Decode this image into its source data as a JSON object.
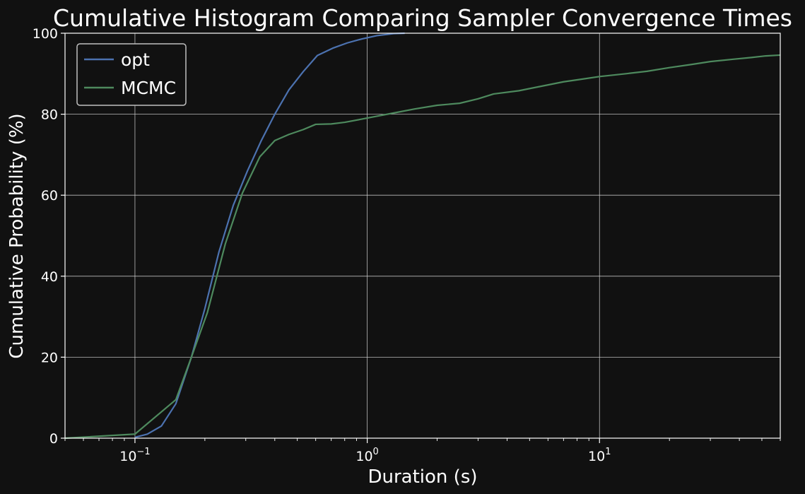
{
  "chart_data": {
    "type": "line",
    "title": "Cumulative Histogram Comparing Sampler Convergence Times",
    "xlabel": "Duration (s)",
    "ylabel": "Cumulative Probability (%)",
    "xscale": "log",
    "xlim": [
      0.05,
      60
    ],
    "ylim": [
      0,
      100
    ],
    "x_ticks": [
      {
        "value": 0.1,
        "base": "10",
        "exp": "−1"
      },
      {
        "value": 1,
        "base": "10",
        "exp": "0"
      },
      {
        "value": 10,
        "base": "10",
        "exp": "1"
      }
    ],
    "y_ticks": [
      {
        "value": 0,
        "label": "0"
      },
      {
        "value": 20,
        "label": "20"
      },
      {
        "value": 40,
        "label": "40"
      },
      {
        "value": 60,
        "label": "60"
      },
      {
        "value": 80,
        "label": "80"
      },
      {
        "value": 100,
        "label": "100"
      }
    ],
    "grid": true,
    "legend_position": "top-left",
    "series": [
      {
        "name": "opt",
        "color": "#4c72b0",
        "points": [
          [
            0.1,
            0.2
          ],
          [
            0.113,
            1.0
          ],
          [
            0.13,
            3.0
          ],
          [
            0.15,
            8.5
          ],
          [
            0.175,
            20.0
          ],
          [
            0.2,
            32.0
          ],
          [
            0.23,
            46.0
          ],
          [
            0.265,
            57.5
          ],
          [
            0.305,
            66.0
          ],
          [
            0.35,
            73.5
          ],
          [
            0.4,
            80.0
          ],
          [
            0.46,
            86.0
          ],
          [
            0.53,
            90.5
          ],
          [
            0.61,
            94.5
          ],
          [
            0.71,
            96.3
          ],
          [
            0.82,
            97.6
          ],
          [
            0.95,
            98.6
          ],
          [
            1.1,
            99.4
          ],
          [
            1.3,
            99.9
          ],
          [
            1.45,
            100.0
          ]
        ]
      },
      {
        "name": "MCMC",
        "color": "#4e8a5e",
        "points": [
          [
            0.05,
            0.0
          ],
          [
            0.1,
            1.0
          ],
          [
            0.15,
            9.5
          ],
          [
            0.175,
            20.0
          ],
          [
            0.205,
            31.0
          ],
          [
            0.245,
            48.0
          ],
          [
            0.29,
            60.5
          ],
          [
            0.345,
            69.5
          ],
          [
            0.4,
            73.5
          ],
          [
            0.46,
            75.0
          ],
          [
            0.53,
            76.2
          ],
          [
            0.6,
            77.5
          ],
          [
            0.7,
            77.6
          ],
          [
            0.8,
            78.0
          ],
          [
            0.95,
            78.8
          ],
          [
            1.1,
            79.5
          ],
          [
            1.3,
            80.3
          ],
          [
            1.6,
            81.3
          ],
          [
            2.0,
            82.2
          ],
          [
            2.5,
            82.7
          ],
          [
            3.0,
            83.8
          ],
          [
            3.5,
            85.0
          ],
          [
            4.5,
            85.8
          ],
          [
            5.5,
            86.8
          ],
          [
            7.0,
            88.0
          ],
          [
            8.5,
            88.7
          ],
          [
            10.0,
            89.3
          ],
          [
            13.0,
            90.0
          ],
          [
            16.0,
            90.6
          ],
          [
            20.0,
            91.5
          ],
          [
            25.0,
            92.3
          ],
          [
            30.0,
            93.0
          ],
          [
            38.0,
            93.6
          ],
          [
            45.0,
            94.0
          ],
          [
            52.0,
            94.4
          ],
          [
            60.0,
            94.6
          ]
        ]
      }
    ]
  }
}
